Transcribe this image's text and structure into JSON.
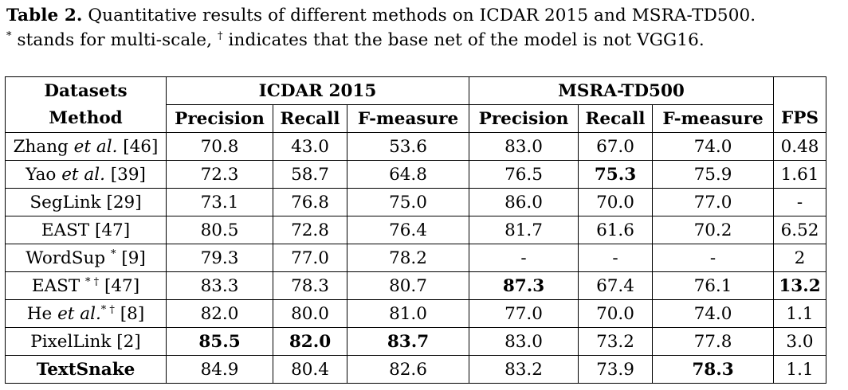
{
  "caption": {
    "label": "Table 2.",
    "line1": "Quantitative results of different methods on ICDAR 2015 and MSRA-TD500.",
    "line2_a": "stands for multi-scale,",
    "line2_b": "indicates that the base net of the model is not VGG16.",
    "star": "*",
    "dagger": "†"
  },
  "header": {
    "datasets_label": "Datasets",
    "method_label": "Method",
    "icdar": "ICDAR 2015",
    "msra": "MSRA-TD500",
    "columns": [
      "Precision",
      "Recall",
      "F-measure",
      "Precision",
      "Recall",
      "F-measure",
      "FPS"
    ]
  },
  "rows": [
    {
      "method": [
        "Zhang ",
        "et al.",
        " [46]"
      ],
      "values": [
        "70.8",
        "43.0",
        "53.6",
        "83.0",
        "67.0",
        "74.0",
        "0.48"
      ],
      "bold": []
    },
    {
      "method": [
        "Yao ",
        "et al.",
        " [39]"
      ],
      "values": [
        "72.3",
        "58.7",
        "64.8",
        "76.5",
        "75.3",
        "75.9",
        "1.61"
      ],
      "bold": [
        4
      ]
    },
    {
      "method": [
        "SegLink [29]"
      ],
      "values": [
        "73.1",
        "76.8",
        "75.0",
        "86.0",
        "70.0",
        "77.0",
        "-"
      ],
      "bold": []
    },
    {
      "method": [
        "EAST [47]"
      ],
      "values": [
        "80.5",
        "72.8",
        "76.4",
        "81.7",
        "61.6",
        "70.2",
        "6.52"
      ],
      "bold": []
    },
    {
      "method": [
        "WordSup ",
        "*",
        " [9]"
      ],
      "values": [
        "79.3",
        "77.0",
        "78.2",
        "-",
        "-",
        "-",
        "2"
      ],
      "bold": []
    },
    {
      "method": [
        "EAST ",
        "* †",
        " [47]"
      ],
      "values": [
        "83.3",
        "78.3",
        "80.7",
        "87.3",
        "67.4",
        "76.1",
        "13.2"
      ],
      "bold": [
        3,
        6
      ]
    },
    {
      "method": [
        "He ",
        "et al.",
        " * †",
        " [8]"
      ],
      "values": [
        "82.0",
        "80.0",
        "81.0",
        "77.0",
        "70.0",
        "74.0",
        "1.1"
      ],
      "bold": []
    },
    {
      "method": [
        "PixelLink [2]"
      ],
      "values": [
        "85.5",
        "82.0",
        "83.7",
        "83.0",
        "73.2",
        "77.8",
        "3.0"
      ],
      "bold": [
        0,
        1,
        2
      ]
    },
    {
      "method": [
        "TextSnake"
      ],
      "values": [
        "84.9",
        "80.4",
        "82.6",
        "83.2",
        "73.9",
        "78.3",
        "1.1"
      ],
      "bold": [
        5
      ],
      "method_bold": true
    }
  ]
}
